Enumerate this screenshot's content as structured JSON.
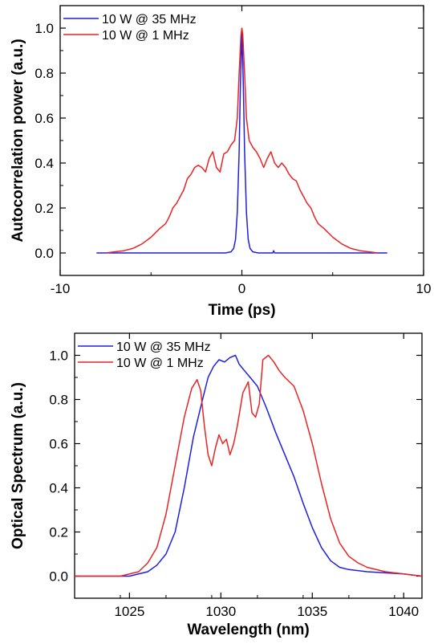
{
  "colors": {
    "blue": "#1f1fe0",
    "red": "#e82424",
    "axis": "#000000",
    "background": "#ffffff"
  },
  "chart_data": [
    {
      "type": "line",
      "title": "",
      "xlabel": "Time (ps)",
      "ylabel": "Autocorrelation power (a.u.)",
      "xlim": [
        -10,
        10
      ],
      "ylim": [
        -0.1,
        1.1
      ],
      "xticks": [
        -10,
        0,
        10
      ],
      "xtick_labels": [
        "-10",
        "0",
        "10"
      ],
      "yticks": [
        0.0,
        0.2,
        0.4,
        0.6,
        0.8,
        1.0
      ],
      "ytick_labels": [
        "0.0",
        "0.2",
        "0.4",
        "0.6",
        "0.8",
        "1.0"
      ],
      "grid": false,
      "legend_position": "top-left",
      "series": [
        {
          "name": "10 W @ 35 MHz",
          "color": "#1f1fe0",
          "x": [
            -8.0,
            -0.9,
            -0.6,
            -0.45,
            -0.35,
            -0.25,
            -0.15,
            -0.08,
            0.0,
            0.08,
            0.15,
            0.25,
            0.35,
            0.45,
            0.6,
            0.9,
            1.7,
            1.75,
            1.8,
            8.0
          ],
          "y": [
            0.0,
            0.0,
            0.005,
            0.02,
            0.06,
            0.18,
            0.45,
            0.75,
            0.99,
            0.75,
            0.45,
            0.18,
            0.06,
            0.02,
            0.005,
            0.0,
            0.0,
            0.01,
            0.0,
            0.0
          ]
        },
        {
          "name": "10 W @ 1 MHz",
          "color": "#e82424",
          "x": [
            -7.5,
            -6.5,
            -6.0,
            -5.5,
            -5.0,
            -4.5,
            -4.2,
            -4.0,
            -3.8,
            -3.6,
            -3.4,
            -3.2,
            -3.0,
            -2.8,
            -2.6,
            -2.4,
            -2.2,
            -2.0,
            -1.8,
            -1.6,
            -1.4,
            -1.2,
            -1.0,
            -0.8,
            -0.6,
            -0.4,
            -0.25,
            -0.15,
            -0.05,
            0.0,
            0.05,
            0.15,
            0.25,
            0.4,
            0.6,
            0.8,
            1.0,
            1.2,
            1.4,
            1.6,
            1.8,
            2.0,
            2.2,
            2.4,
            2.6,
            2.8,
            3.0,
            3.2,
            3.4,
            3.6,
            3.8,
            4.0,
            4.2,
            4.5,
            5.0,
            5.5,
            6.0,
            6.5,
            7.0,
            7.5
          ],
          "y": [
            0.0,
            0.01,
            0.02,
            0.04,
            0.07,
            0.11,
            0.13,
            0.16,
            0.2,
            0.22,
            0.25,
            0.28,
            0.33,
            0.35,
            0.38,
            0.39,
            0.38,
            0.36,
            0.42,
            0.45,
            0.38,
            0.36,
            0.44,
            0.45,
            0.48,
            0.5,
            0.6,
            0.8,
            0.97,
            1.0,
            0.97,
            0.8,
            0.6,
            0.5,
            0.47,
            0.45,
            0.42,
            0.38,
            0.42,
            0.45,
            0.4,
            0.38,
            0.4,
            0.38,
            0.35,
            0.33,
            0.32,
            0.28,
            0.25,
            0.22,
            0.2,
            0.16,
            0.13,
            0.11,
            0.07,
            0.04,
            0.02,
            0.01,
            0.005,
            0.0
          ]
        }
      ]
    },
    {
      "type": "line",
      "title": "",
      "xlabel": "Wavelength (nm)",
      "ylabel": "Optical Spectrum (a.u.)",
      "xlim": [
        1022,
        1041
      ],
      "ylim": [
        -0.1,
        1.1
      ],
      "xticks": [
        1025,
        1030,
        1035,
        1040
      ],
      "xtick_labels": [
        "1025",
        "1030",
        "1035",
        "1040"
      ],
      "yticks": [
        0.0,
        0.2,
        0.4,
        0.6,
        0.8,
        1.0
      ],
      "ytick_labels": [
        "0.0",
        "0.2",
        "0.4",
        "0.6",
        "0.8",
        "1.0"
      ],
      "grid": false,
      "legend_position": "top-left",
      "series": [
        {
          "name": "10 W @ 35 MHz",
          "color": "#1f1fe0",
          "x": [
            1022,
            1025,
            1026,
            1026.5,
            1027,
            1027.5,
            1028,
            1028.5,
            1029,
            1029.3,
            1029.6,
            1029.9,
            1030.2,
            1030.5,
            1030.8,
            1031.0,
            1031.3,
            1031.6,
            1032.0,
            1032.5,
            1033.0,
            1033.5,
            1034.0,
            1034.5,
            1035.0,
            1035.5,
            1036.0,
            1036.5,
            1037.0,
            1038.0,
            1039.0,
            1040.0,
            1041.0
          ],
          "y": [
            0.0,
            0.0,
            0.02,
            0.05,
            0.1,
            0.2,
            0.4,
            0.63,
            0.8,
            0.9,
            0.95,
            0.98,
            0.97,
            0.99,
            1.0,
            0.96,
            0.93,
            0.9,
            0.86,
            0.76,
            0.65,
            0.55,
            0.45,
            0.33,
            0.22,
            0.13,
            0.07,
            0.04,
            0.03,
            0.02,
            0.015,
            0.01,
            0.0
          ]
        },
        {
          "name": "10 W @ 1 MHz",
          "color": "#e82424",
          "x": [
            1022,
            1024.5,
            1025.5,
            1026.0,
            1026.5,
            1027.0,
            1027.5,
            1028.0,
            1028.4,
            1028.7,
            1028.9,
            1029.1,
            1029.3,
            1029.5,
            1029.7,
            1029.9,
            1030.1,
            1030.3,
            1030.5,
            1030.7,
            1030.9,
            1031.2,
            1031.5,
            1031.7,
            1031.9,
            1032.1,
            1032.3,
            1032.6,
            1032.9,
            1033.2,
            1033.5,
            1034.0,
            1034.5,
            1035.0,
            1035.5,
            1036.0,
            1036.5,
            1037.0,
            1037.5,
            1038.0,
            1039.0,
            1040.0,
            1041.0
          ],
          "y": [
            0.0,
            0.0,
            0.02,
            0.06,
            0.13,
            0.28,
            0.5,
            0.72,
            0.85,
            0.89,
            0.84,
            0.68,
            0.55,
            0.5,
            0.58,
            0.64,
            0.6,
            0.62,
            0.55,
            0.6,
            0.68,
            0.83,
            0.88,
            0.74,
            0.72,
            0.78,
            0.98,
            1.0,
            0.97,
            0.93,
            0.9,
            0.86,
            0.75,
            0.6,
            0.42,
            0.26,
            0.15,
            0.09,
            0.06,
            0.04,
            0.02,
            0.01,
            0.0
          ]
        }
      ]
    }
  ]
}
